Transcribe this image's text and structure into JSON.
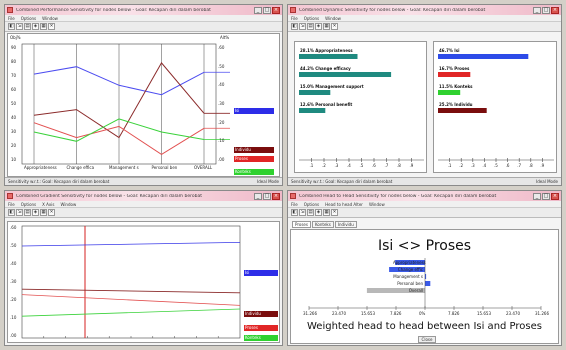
{
  "windows": {
    "tl": {
      "title": "Combined Performance Sensitivity for nodes below - Goal: Kecapan diri dalam berobat",
      "status_left": "Sensitivity w.r.t.: Goal: Kecapan diri dalam berobat",
      "status_right": "Ideal Mode"
    },
    "tr": {
      "title": "Combined Dynamic Sensitivity for nodes below - Goal: Kecapan diri dalam berobat",
      "status_left": "Sensitivity w.r.t.: Goal: Kecapan diri dalam berobat",
      "status_right": "Ideal Mode"
    },
    "bl": {
      "title": "Combined Gradient Sensitivity for nodes below - Goal: Kecapan diri dalam berobat"
    },
    "br": {
      "title": "Combined Head to Head Sensitivity for nodes below - Goal: Kecapan diri dalam berobat"
    }
  },
  "menus": {
    "file": "File",
    "options": "Options",
    "window": "Window",
    "x_axis": "X Axis",
    "head": "Head to head Alter"
  },
  "tools": [
    "◧",
    "⇲",
    "▤",
    "◈",
    "▦",
    "✕",
    "⊞"
  ],
  "perf": {
    "left_top": "Obj%",
    "right_top": "Alt%",
    "left_ticks": [
      "90",
      "80",
      "70",
      "60",
      "50",
      "40",
      "30",
      "20",
      "10"
    ],
    "right_ticks": [
      ".60",
      ".50",
      ".40",
      ".30",
      ".20",
      ".10",
      ".00"
    ],
    "criteria": [
      "Appropriateness",
      "Change effica",
      "Management s",
      "Personal ben",
      "OVERALL"
    ],
    "alt_labels": [
      {
        "name": "Isi",
        "color": "#2d2de8"
      },
      {
        "name": "Individu",
        "color": "#7a0d0d"
      },
      {
        "name": "Proses",
        "color": "#e12626"
      },
      {
        "name": "Konteks",
        "color": "#2fd12f"
      }
    ]
  },
  "dyn": {
    "left_bars": [
      {
        "label": "28.1% Appropriateness",
        "value": 28.1,
        "color": "#1f8a80"
      },
      {
        "label": "44.2% Change efficacy",
        "value": 44.2,
        "color": "#1f8a80"
      },
      {
        "label": "15.0% Management support",
        "value": 15.0,
        "color": "#1f8a80"
      },
      {
        "label": "12.6% Personal benefit",
        "value": 12.6,
        "color": "#1f8a80"
      }
    ],
    "right_bars": [
      {
        "label": "46.7% Isi",
        "value": 46.7,
        "color": "#2d4be8"
      },
      {
        "label": "16.7% Proses",
        "value": 16.7,
        "color": "#e12626"
      },
      {
        "label": "11.5% Konteks",
        "value": 11.5,
        "color": "#2fd12f"
      },
      {
        "label": "25.2% Individu",
        "value": 25.2,
        "color": "#7a0d0d"
      }
    ],
    "ticks": [
      ".1",
      ".2",
      ".3",
      ".4",
      ".5",
      ".6",
      ".7",
      ".8",
      ".9"
    ]
  },
  "grad": {
    "left_ticks": [
      ".60",
      ".50",
      ".40",
      ".30",
      ".20",
      ".10",
      ".00"
    ],
    "labels": [
      {
        "name": "Isi",
        "color": "#2d2de8"
      },
      {
        "name": "Individu",
        "color": "#7a0d0d"
      },
      {
        "name": "Proses",
        "color": "#e12626"
      },
      {
        "name": "Konteks",
        "color": "#2fd12f"
      }
    ]
  },
  "h2h": {
    "tabs": [
      "Proses",
      "Konteks",
      "Individu"
    ],
    "title": "Isi <> Proses",
    "rows": [
      "Appropriateness",
      "Change effic",
      "Management s",
      "Personal ben",
      "Overall"
    ],
    "x_ticks": [
      "31.266",
      "23.470",
      "15.653",
      "7.826",
      "0%",
      "7.826",
      "15.653",
      "23.470",
      "31.266"
    ],
    "subtitle": "Weighted head to head between Isi and Proses",
    "button": "Close"
  },
  "chart_data": [
    {
      "type": "line",
      "title": "",
      "categories": [
        "Appropriateness",
        "Change effica",
        "Management s",
        "Personal ben",
        "OVERALL"
      ],
      "series": [
        {
          "name": "Isi",
          "values": [
            0.46,
            0.5,
            0.4,
            0.35,
            0.47
          ],
          "color": "#4c4cf0"
        },
        {
          "name": "Individu",
          "values": [
            0.24,
            0.27,
            0.12,
            0.52,
            0.25
          ],
          "color": "#8b2a2a"
        },
        {
          "name": "Proses",
          "values": [
            0.2,
            0.12,
            0.18,
            0.03,
            0.17
          ],
          "color": "#e25050"
        },
        {
          "name": "Konteks",
          "values": [
            0.15,
            0.1,
            0.22,
            0.15,
            0.11
          ],
          "color": "#3ad23a"
        }
      ]
    },
    {
      "type": "line",
      "title": "",
      "series": [
        {
          "name": "Isi",
          "values": [
            0.5,
            0.52
          ]
        },
        {
          "name": "Individu",
          "values": [
            0.26,
            0.24
          ]
        },
        {
          "name": "Proses",
          "values": [
            0.23,
            0.17
          ]
        },
        {
          "name": "Konteks",
          "values": [
            0.11,
            0.15
          ]
        }
      ]
    },
    {
      "type": "bar",
      "title": "Isi <> Proses",
      "categories": [
        "Appropriateness",
        "Change effic",
        "Management s",
        "Personal ben",
        "Overall"
      ],
      "values": [
        -8.5,
        -10.2,
        0.3,
        1.5,
        -16.5
      ]
    }
  ]
}
